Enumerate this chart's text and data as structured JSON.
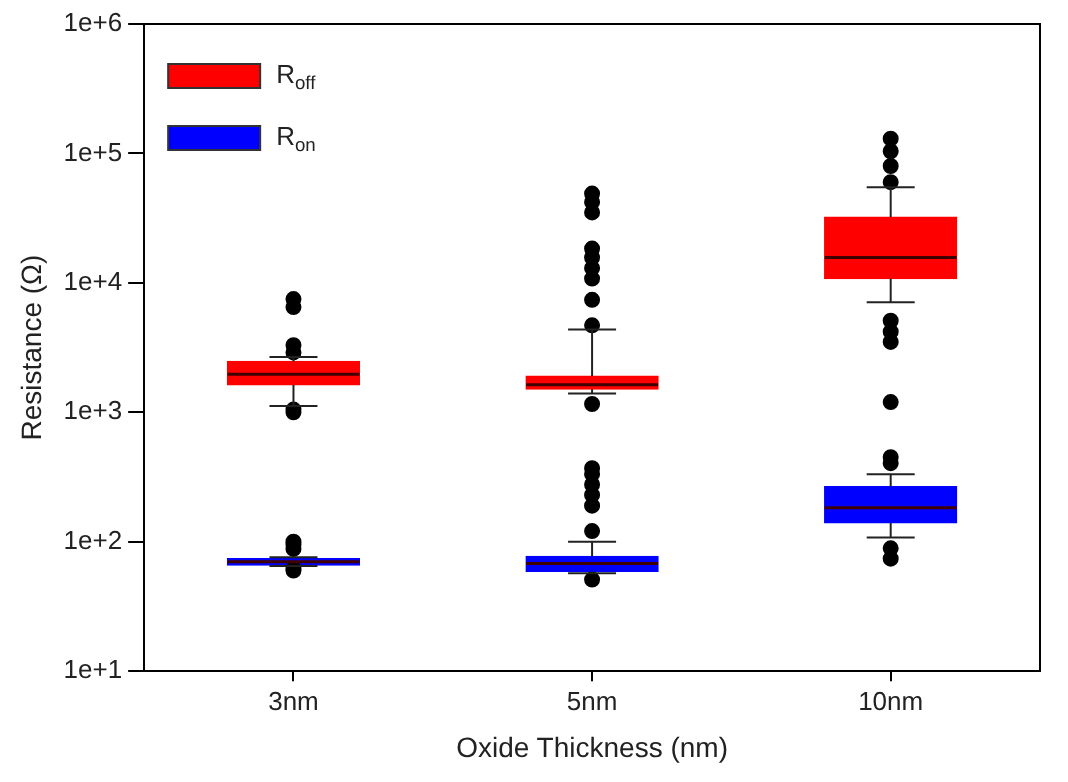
{
  "chart_data": {
    "type": "box",
    "categories": [
      "3nm",
      "5nm",
      "10nm"
    ],
    "xlabel": "Oxide Thickness (nm)",
    "ylabel": "Resistance (Ω)",
    "ylim": [
      10,
      1000000
    ],
    "log": true,
    "legend": "top left",
    "grid": false,
    "yticks": [
      {
        "value": 10,
        "label": "1e+1"
      },
      {
        "value": 100,
        "label": "1e+2"
      },
      {
        "value": 1000,
        "label": "1e+3"
      },
      {
        "value": 10000,
        "label": "1e+4"
      },
      {
        "value": 100000,
        "label": "1e+5"
      },
      {
        "value": 1000000,
        "label": "1e+6"
      }
    ],
    "series": [
      {
        "name": "R$_{off}$",
        "color": "#ff0000",
        "boxes": [
          {
            "low": 1120,
            "q1": 1630,
            "median": 1970,
            "q3": 2470,
            "high": 2670,
            "outliers": [
              7500,
              6500,
              3300,
              2900,
              1050,
              1000
            ]
          },
          {
            "low": 1400,
            "q1": 1510,
            "median": 1630,
            "q3": 1900,
            "high": 4360,
            "outliers": [
              4700,
              7400,
              10800,
              13000,
              15700,
              18400,
              35000,
              42000,
              49000,
              1160
            ]
          },
          {
            "low": 7100,
            "q1": 10800,
            "median": 15700,
            "q3": 32200,
            "high": 54700,
            "outliers": [
              60000,
              80000,
              104000,
              130000,
              5100,
              4200,
              3500,
              1200
            ]
          }
        ]
      },
      {
        "name": "R$_{on}$",
        "color": "#0000ff",
        "boxes": [
          {
            "low": 65,
            "q1": 66,
            "median": 70,
            "q3": 74,
            "high": 76,
            "outliers": [
              100,
              95,
              88,
              62,
              60
            ]
          },
          {
            "low": 57,
            "q1": 59,
            "median": 68,
            "q3": 77,
            "high": 100,
            "outliers": [
              121,
              190,
              230,
              277,
              333,
              370,
              51
            ]
          },
          {
            "low": 108,
            "q1": 140,
            "median": 183,
            "q3": 267,
            "high": 333,
            "outliers": [
              405,
              450,
              89,
              74
            ]
          }
        ]
      }
    ]
  }
}
